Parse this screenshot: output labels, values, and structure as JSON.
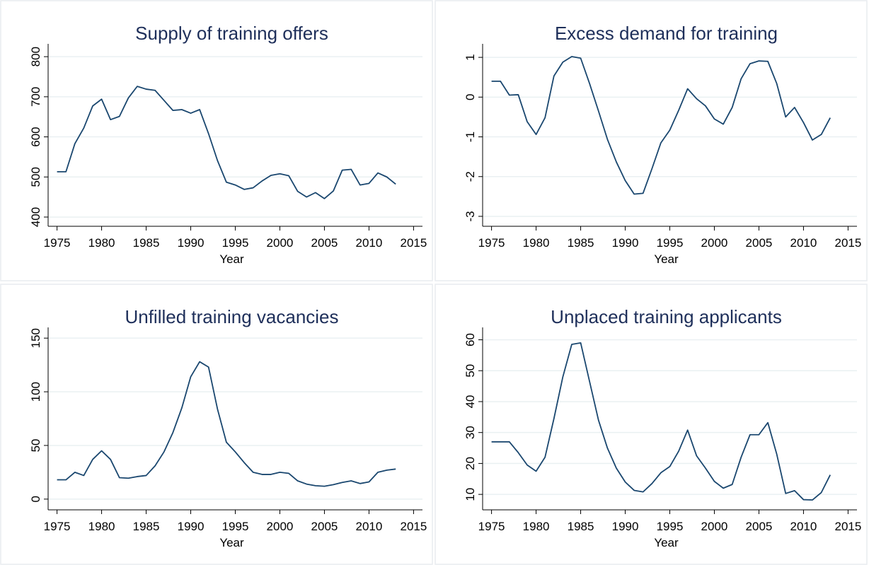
{
  "chart_data": [
    {
      "type": "line",
      "title": "Supply of training offers",
      "xlabel": "Year",
      "color": "#1a476f",
      "grid": true,
      "x": [
        1975,
        1976,
        1977,
        1978,
        1979,
        1980,
        1981,
        1982,
        1983,
        1984,
        1985,
        1986,
        1987,
        1988,
        1989,
        1990,
        1991,
        1992,
        1993,
        1994,
        1995,
        1996,
        1997,
        1998,
        1999,
        2000,
        2001,
        2002,
        2003,
        2004,
        2005,
        2006,
        2007,
        2008,
        2009,
        2010,
        2011,
        2012,
        2013
      ],
      "values": [
        513,
        513,
        583,
        622,
        677,
        694,
        643,
        651,
        697,
        726,
        719,
        716,
        691,
        666,
        668,
        659,
        668,
        608,
        541,
        487,
        480,
        469,
        473,
        490,
        504,
        508,
        503,
        464,
        450,
        461,
        446,
        465,
        517,
        519,
        480,
        484,
        510,
        500,
        482
      ],
      "xlim": [
        1974,
        2016
      ],
      "xticks": [
        1975,
        1980,
        1985,
        1990,
        1995,
        2000,
        2005,
        2010,
        2015
      ],
      "ylim": [
        377,
        832
      ],
      "yticks": [
        400,
        500,
        600,
        700,
        800
      ]
    },
    {
      "type": "line",
      "title": "Excess demand for training",
      "xlabel": "Year",
      "color": "#1a476f",
      "grid": true,
      "x": [
        1975,
        1976,
        1977,
        1978,
        1979,
        1980,
        1981,
        1982,
        1983,
        1984,
        1985,
        1986,
        1987,
        1988,
        1989,
        1990,
        1991,
        1992,
        1993,
        1994,
        1995,
        1996,
        1997,
        1998,
        1999,
        2000,
        2001,
        2002,
        2003,
        2004,
        2005,
        2006,
        2007,
        2008,
        2009,
        2010,
        2011,
        2012,
        2013
      ],
      "values": [
        0.4,
        0.4,
        0.05,
        0.06,
        -0.62,
        -0.94,
        -0.52,
        0.53,
        0.88,
        1.02,
        0.98,
        0.34,
        -0.35,
        -1.06,
        -1.63,
        -2.1,
        -2.44,
        -2.42,
        -1.8,
        -1.15,
        -0.83,
        -0.33,
        0.21,
        -0.04,
        -0.22,
        -0.55,
        -0.68,
        -0.26,
        0.46,
        0.84,
        0.91,
        0.9,
        0.34,
        -0.5,
        -0.26,
        -0.64,
        -1.08,
        -0.94,
        -0.52
      ],
      "xlim": [
        1974,
        2016
      ],
      "xticks": [
        1975,
        1980,
        1985,
        1990,
        1995,
        2000,
        2005,
        2010,
        2015
      ],
      "ylim": [
        -3.25,
        1.34
      ],
      "yticks": [
        -3,
        -2,
        -1,
        0,
        1
      ]
    },
    {
      "type": "line",
      "title": "Unfilled training vacancies",
      "xlabel": "Year",
      "color": "#1a476f",
      "grid": true,
      "x": [
        1975,
        1976,
        1977,
        1978,
        1979,
        1980,
        1981,
        1982,
        1983,
        1984,
        1985,
        1986,
        1987,
        1988,
        1989,
        1990,
        1991,
        1992,
        1993,
        1994,
        1995,
        1996,
        1997,
        1998,
        1999,
        2000,
        2001,
        2002,
        2003,
        2004,
        2005,
        2006,
        2007,
        2008,
        2009,
        2010,
        2011,
        2012,
        2013
      ],
      "values": [
        18,
        18,
        25,
        22,
        37,
        45,
        37,
        20,
        19.5,
        21,
        22,
        31,
        44,
        62,
        85,
        114,
        128,
        123,
        84,
        53,
        44,
        34,
        25,
        23,
        23,
        25,
        24,
        17,
        14,
        12.5,
        12,
        13.5,
        15.5,
        17,
        14.5,
        16,
        25,
        27,
        28
      ],
      "xlim": [
        1974,
        2016
      ],
      "xticks": [
        1975,
        1980,
        1985,
        1990,
        1995,
        2000,
        2005,
        2010,
        2015
      ],
      "ylim": [
        -10,
        160
      ],
      "yticks": [
        0,
        50,
        100,
        150
      ]
    },
    {
      "type": "line",
      "title": "Unplaced training applicants",
      "xlabel": "Year",
      "color": "#1a476f",
      "grid": true,
      "x": [
        1975,
        1976,
        1977,
        1978,
        1979,
        1980,
        1981,
        1982,
        1983,
        1984,
        1985,
        1986,
        1987,
        1988,
        1989,
        1990,
        1991,
        1992,
        1993,
        1994,
        1995,
        1996,
        1997,
        1998,
        1999,
        2000,
        2001,
        2002,
        2003,
        2004,
        2005,
        2006,
        2007,
        2008,
        2009,
        2010,
        2011,
        2012,
        2013
      ],
      "values": [
        27,
        27,
        27,
        23.5,
        19.5,
        17.5,
        22,
        34.5,
        48,
        58.5,
        59,
        46.5,
        34,
        25,
        18.5,
        14,
        11.3,
        10.8,
        13.5,
        17,
        19,
        24,
        30.8,
        22.5,
        18.5,
        14.2,
        12,
        13.2,
        22,
        29.3,
        29.3,
        33.2,
        23,
        10.3,
        11.2,
        8.3,
        8.2,
        10.6,
        16.3
      ],
      "xlim": [
        1974,
        2016
      ],
      "xticks": [
        1975,
        1980,
        1985,
        1990,
        1995,
        2000,
        2005,
        2010,
        2015
      ],
      "ylim": [
        5,
        64
      ],
      "yticks": [
        10,
        20,
        30,
        40,
        50,
        60
      ]
    }
  ]
}
